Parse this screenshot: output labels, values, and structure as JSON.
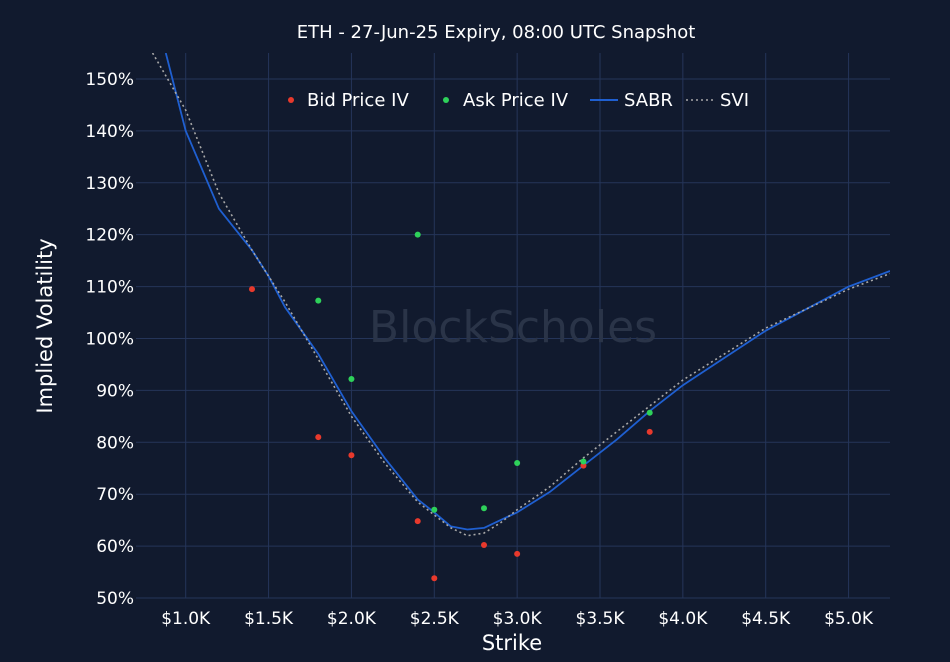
{
  "chart_data": {
    "type": "scatter",
    "title": "ETH - 27-Jun-25 Expiry, 08:00 UTC Snapshot",
    "xlabel": "Strike",
    "ylabel": "Implied Volatility",
    "xlim": [
      700,
      5250
    ],
    "ylim": [
      50,
      155
    ],
    "x_ticks": [
      1000,
      1500,
      2000,
      2500,
      3000,
      3500,
      4000,
      4500,
      5000
    ],
    "x_tick_labels": [
      "$1.0K",
      "$1.5K",
      "$2.0K",
      "$2.5K",
      "$3.0K",
      "$3.5K",
      "$4.0K",
      "$4.5K",
      "$5.0K"
    ],
    "y_ticks": [
      50,
      60,
      70,
      80,
      90,
      100,
      110,
      120,
      130,
      140,
      150
    ],
    "y_tick_labels": [
      "50%",
      "60%",
      "70%",
      "80%",
      "90%",
      "100%",
      "110%",
      "120%",
      "130%",
      "140%",
      "150%"
    ],
    "grid": true,
    "legend_position": "top",
    "watermark": "BlockScholes",
    "series": [
      {
        "name": "Bid Price IV",
        "kind": "markers",
        "color": "#e8392c",
        "points": [
          [
            1400,
            109.5
          ],
          [
            1800,
            81
          ],
          [
            2000,
            77.5
          ],
          [
            2400,
            64.8
          ],
          [
            2500,
            53.8
          ],
          [
            2800,
            60.2
          ],
          [
            3000,
            58.5
          ],
          [
            3400,
            75.5
          ],
          [
            3800,
            82
          ]
        ]
      },
      {
        "name": "Ask Price IV",
        "kind": "markers",
        "color": "#2ed15a",
        "points": [
          [
            1800,
            107.3
          ],
          [
            2000,
            92.2
          ],
          [
            2400,
            120
          ],
          [
            2500,
            67
          ],
          [
            2800,
            67.3
          ],
          [
            3000,
            76
          ],
          [
            3400,
            76.3
          ],
          [
            3800,
            85.7
          ]
        ]
      },
      {
        "name": "SABR",
        "kind": "line",
        "color": "#1f5fd0",
        "points": [
          [
            880,
            155
          ],
          [
            1000,
            140
          ],
          [
            1200,
            125
          ],
          [
            1400,
            117
          ],
          [
            1500,
            112
          ],
          [
            1600,
            106
          ],
          [
            1800,
            97
          ],
          [
            2000,
            86
          ],
          [
            2200,
            77
          ],
          [
            2400,
            69
          ],
          [
            2500,
            66.5
          ],
          [
            2600,
            63.8
          ],
          [
            2700,
            63.2
          ],
          [
            2800,
            63.5
          ],
          [
            2900,
            65
          ],
          [
            3000,
            66.5
          ],
          [
            3200,
            70.5
          ],
          [
            3400,
            75.5
          ],
          [
            3600,
            80.5
          ],
          [
            3800,
            86
          ],
          [
            4000,
            91
          ],
          [
            4500,
            101.5
          ],
          [
            5000,
            110
          ],
          [
            5250,
            113
          ]
        ]
      },
      {
        "name": "SVI",
        "kind": "dotted-line",
        "color": "#a8a8a8",
        "points": [
          [
            800,
            155
          ],
          [
            1000,
            144
          ],
          [
            1200,
            128
          ],
          [
            1400,
            117
          ],
          [
            1500,
            112
          ],
          [
            1600,
            107
          ],
          [
            1800,
            96
          ],
          [
            2000,
            85
          ],
          [
            2200,
            76
          ],
          [
            2400,
            68.5
          ],
          [
            2500,
            66
          ],
          [
            2600,
            63.5
          ],
          [
            2700,
            62
          ],
          [
            2800,
            62.5
          ],
          [
            2900,
            64.5
          ],
          [
            3000,
            67
          ],
          [
            3200,
            71.5
          ],
          [
            3400,
            77
          ],
          [
            3600,
            82
          ],
          [
            3800,
            87
          ],
          [
            4000,
            92
          ],
          [
            4500,
            102
          ],
          [
            5000,
            109.5
          ],
          [
            5250,
            112.5
          ]
        ]
      }
    ]
  }
}
